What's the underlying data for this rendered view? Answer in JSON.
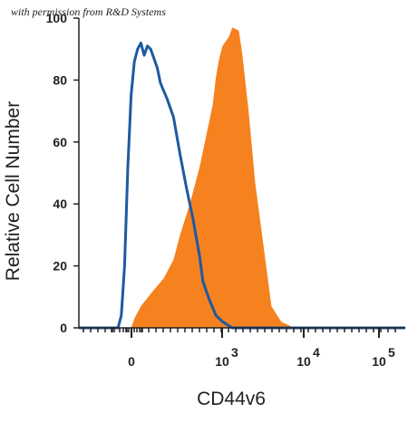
{
  "watermark": "with permission from R&D Systems",
  "chart_data": {
    "type": "area",
    "title": "",
    "xlabel": "CD44v6",
    "ylabel": "Relative Cell Number",
    "x_scale": "biexponential",
    "x_ticks": [
      {
        "label": "0",
        "exp": ""
      },
      {
        "label": "10",
        "exp": "3"
      },
      {
        "label": "10",
        "exp": "4"
      },
      {
        "label": "10",
        "exp": "5"
      }
    ],
    "y_ticks": [
      "0",
      "20",
      "40",
      "60",
      "80",
      "100"
    ],
    "ylim": [
      0,
      100
    ],
    "colors": {
      "filled": "#f5821f",
      "outline": "#1e5aa0"
    },
    "series": [
      {
        "style": "filled",
        "x_axis_fraction": [
          0.16,
          0.17,
          0.19,
          0.22,
          0.26,
          0.29,
          0.31,
          0.34,
          0.37,
          0.39,
          0.41,
          0.42,
          0.43,
          0.44,
          0.46,
          0.47,
          0.49,
          0.5,
          0.52,
          0.54,
          0.57,
          0.59,
          0.62,
          0.66
        ],
        "values": [
          0,
          3,
          7,
          11,
          16,
          22,
          30,
          40,
          52,
          62,
          72,
          81,
          87,
          91,
          94,
          97,
          96,
          89,
          70,
          47,
          23,
          7,
          2,
          0
        ]
      },
      {
        "style": "outline",
        "x_axis_fraction": [
          0.12,
          0.13,
          0.14,
          0.15,
          0.16,
          0.17,
          0.18,
          0.19,
          0.2,
          0.21,
          0.22,
          0.24,
          0.25,
          0.27,
          0.29,
          0.31,
          0.33,
          0.35,
          0.37,
          0.38,
          0.4,
          0.42,
          0.44,
          0.47,
          0.5
        ],
        "values": [
          0,
          4,
          20,
          52,
          75,
          86,
          90,
          92,
          88,
          91,
          90,
          84,
          79,
          74,
          68,
          56,
          45,
          35,
          23,
          15,
          9,
          4,
          2,
          0,
          0
        ]
      }
    ]
  }
}
